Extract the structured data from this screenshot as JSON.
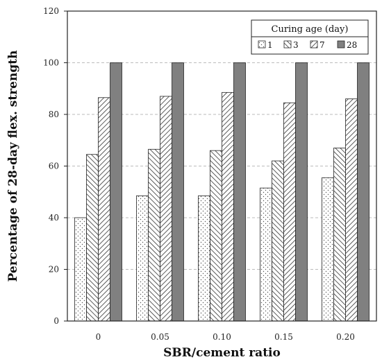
{
  "chart_data": {
    "type": "bar",
    "categories": [
      "0",
      "0.05",
      "0.10",
      "0.15",
      "0.20"
    ],
    "series": [
      {
        "name": "1",
        "values": [
          40,
          48.5,
          48.5,
          51.5,
          55.5
        ],
        "pattern": "dots"
      },
      {
        "name": "3",
        "values": [
          64.5,
          66.5,
          66,
          62,
          67
        ],
        "pattern": "hatch-back"
      },
      {
        "name": "7",
        "values": [
          86.5,
          87,
          88.5,
          84.5,
          86
        ],
        "pattern": "hatch-forward"
      },
      {
        "name": "28",
        "values": [
          100,
          100,
          100,
          100,
          100
        ],
        "pattern": "solid"
      }
    ],
    "title": "",
    "xlabel": "SBR/cement ratio",
    "ylabel": "Percentage of 28-day flex. strength",
    "ylim": [
      0,
      120
    ],
    "yticks": [
      0,
      20,
      40,
      60,
      80,
      100,
      120
    ],
    "grid": true,
    "legend": {
      "title": "Curing age (day)",
      "position": "top-right"
    },
    "colors": {
      "solid": "#808080",
      "stroke": "#222222",
      "grid": "#bbbbbb"
    }
  }
}
